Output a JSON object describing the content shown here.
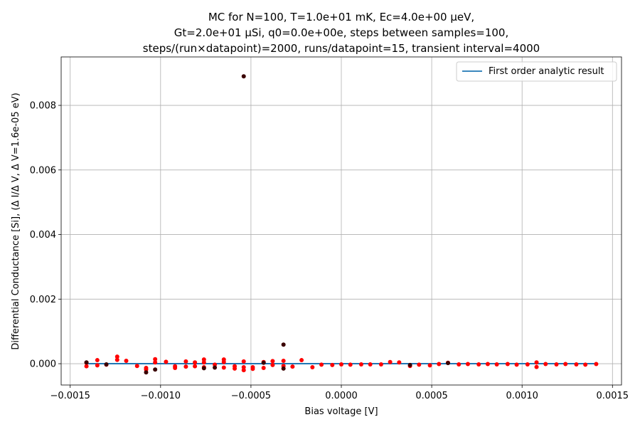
{
  "chart_data": {
    "type": "scatter",
    "title_lines": [
      "MC for N=100, T=1.0e+01 mK, Ec=4.0e+00 μeV,",
      "Gt=2.0e+01 μSi, q0=0.0e+00e, steps between samples=100,",
      "steps/(run×datapoint)=2000, runs/datapoint=15, transient interval=4000"
    ],
    "xlabel": "Bias voltage [V]",
    "ylabel": "Differential Conductance [Si], (Δ I/Δ V, Δ V=1.6e-05 eV)",
    "xlim": [
      -0.00155,
      0.00155
    ],
    "ylim": [
      -0.00066,
      0.0095
    ],
    "x_ticks": [
      -0.0015,
      -0.001,
      -0.0005,
      0.0,
      0.0005,
      0.001,
      0.0015
    ],
    "x_tick_labels": [
      "−0.0015",
      "−0.0010",
      "−0.0005",
      "0.0000",
      "0.0005",
      "0.0010",
      "0.0015"
    ],
    "y_ticks": [
      0.0,
      0.002,
      0.004,
      0.006,
      0.008
    ],
    "y_tick_labels": [
      "0.000",
      "0.002",
      "0.004",
      "0.006",
      "0.008"
    ],
    "grid": true,
    "legend_position": "top-right",
    "series": [
      {
        "name": "First order analytic result",
        "kind": "line",
        "color": "#1f77b4",
        "x": [
          -0.00141,
          0.00141
        ],
        "y": [
          0.0,
          0.0
        ]
      },
      {
        "kind": "scatter",
        "color": "#ff0000",
        "x": [
          -0.00141,
          -0.00141,
          -0.00135,
          -0.00135,
          -0.0013,
          -0.00124,
          -0.00124,
          -0.00119,
          -0.00113,
          -0.00108,
          -0.00108,
          -0.00103,
          -0.00103,
          -0.00097,
          -0.00092,
          -0.00092,
          -0.00086,
          -0.00086,
          -0.00081,
          -0.00081,
          -0.00076,
          -0.00076,
          -0.00076,
          -0.0007,
          -0.00065,
          -0.00065,
          -0.00065,
          -0.00059,
          -0.00059,
          -0.00054,
          -0.00054,
          -0.00054,
          -0.00049,
          -0.00049,
          -0.00043,
          -0.00043,
          -0.00038,
          -0.00038,
          -0.00032,
          -0.00032,
          -0.00027,
          -0.00022,
          -0.00016,
          -0.00011,
          -5e-05,
          0.0,
          5e-05,
          0.00011,
          0.00016,
          0.00022,
          0.00027,
          0.00032,
          0.00038,
          0.00043,
          0.00049,
          0.00054,
          0.00059,
          0.00065,
          0.0007,
          0.00076,
          0.00081,
          0.00086,
          0.00092,
          0.00097,
          0.00103,
          0.00108,
          0.00108,
          0.00113,
          0.00119,
          0.00124,
          0.0013,
          0.00135,
          0.00141
        ],
        "y": [
          3e-05,
          -8e-05,
          0.00011,
          -5e-05,
          -3e-05,
          0.00022,
          0.00012,
          9e-05,
          -7e-05,
          -0.00013,
          -0.00018,
          0.00014,
          4e-05,
          6e-05,
          -8e-05,
          -0.00013,
          7e-05,
          -9e-05,
          4e-05,
          -8e-05,
          0.00013,
          4e-05,
          -0.00011,
          -3e-05,
          0.00013,
          5e-05,
          -0.00012,
          -8e-05,
          -0.00015,
          7e-05,
          -0.00011,
          -0.0002,
          -0.00011,
          -0.00016,
          5e-05,
          -0.00013,
          8e-05,
          -4e-05,
          9e-05,
          -7e-05,
          -9e-05,
          0.00011,
          -0.00011,
          -3e-05,
          -4e-05,
          -2e-05,
          -3e-05,
          -2e-05,
          -2e-05,
          -2e-05,
          5e-05,
          4e-05,
          -7e-05,
          -3e-05,
          -5e-05,
          -1e-05,
          3e-05,
          -2e-05,
          -1e-05,
          -2e-05,
          -1e-05,
          -2e-05,
          -1e-05,
          -3e-05,
          -2e-05,
          4e-05,
          -0.0001,
          -1e-05,
          -2e-05,
          -1e-05,
          -2e-05,
          -3e-05,
          -1e-05
        ]
      },
      {
        "kind": "scatter",
        "color": "#3a0000",
        "x": [
          -0.00054,
          -0.00032,
          -0.00108,
          -0.00103,
          -0.00076,
          -0.0007,
          -0.00043,
          -0.00032,
          -0.00141,
          -0.0013,
          0.00038,
          0.00059
        ],
        "y": [
          0.0089,
          0.00059,
          -0.00027,
          -0.00018,
          -0.00014,
          -0.00012,
          3e-05,
          -0.00015,
          4e-05,
          -2e-05,
          -4e-05,
          2e-05
        ]
      }
    ]
  }
}
